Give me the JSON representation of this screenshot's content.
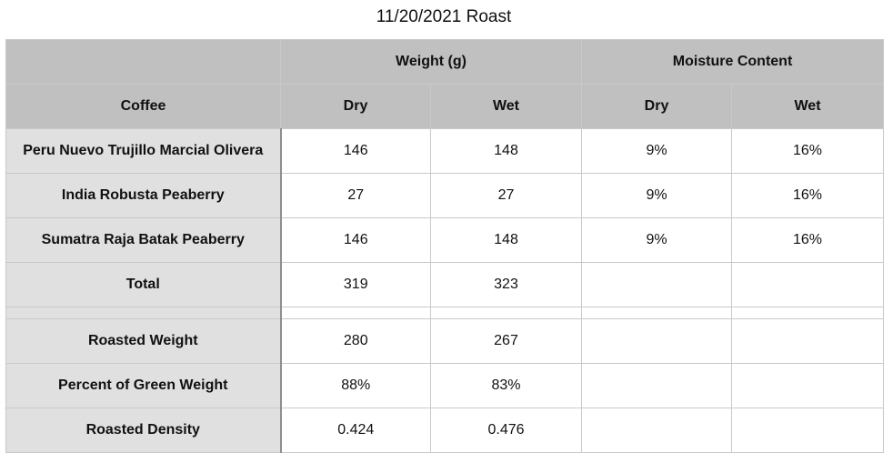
{
  "title": "11/20/2021 Roast",
  "headers": {
    "group_weight": "Weight (g)",
    "group_moisture": "Moisture Content",
    "coffee": "Coffee",
    "weight_dry": "Dry",
    "weight_wet": "Wet",
    "moisture_dry": "Dry",
    "moisture_wet": "Wet"
  },
  "coffees": [
    {
      "name": "Peru Nuevo Trujillo Marcial Olivera",
      "weight_dry": "146",
      "weight_wet": "148",
      "moisture_dry": "9%",
      "moisture_wet": "16%"
    },
    {
      "name": "India Robusta Peaberry",
      "weight_dry": "27",
      "weight_wet": "27",
      "moisture_dry": "9%",
      "moisture_wet": "16%"
    },
    {
      "name": "Sumatra Raja Batak Peaberry",
      "weight_dry": "146",
      "weight_wet": "148",
      "moisture_dry": "9%",
      "moisture_wet": "16%"
    }
  ],
  "total": {
    "label": "Total",
    "weight_dry": "319",
    "weight_wet": "323"
  },
  "summary": [
    {
      "label": "Roasted Weight",
      "weight_dry": "280",
      "weight_wet": "267"
    },
    {
      "label": "Percent of Green Weight",
      "weight_dry": "88%",
      "weight_wet": "83%"
    },
    {
      "label": "Roasted Density",
      "weight_dry": "0.424",
      "weight_wet": "0.476"
    }
  ]
}
